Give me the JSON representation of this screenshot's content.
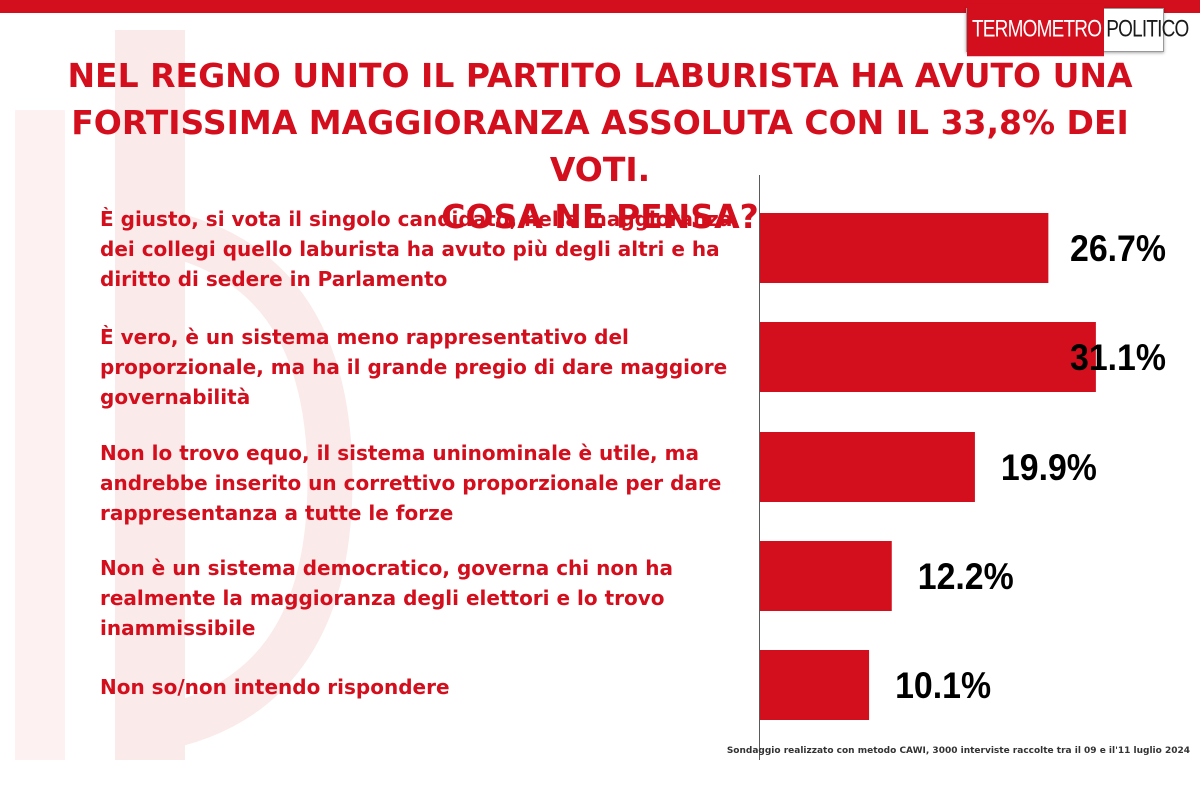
{
  "brand": {
    "logo_part1": "TERMOMETRO",
    "logo_part2": "POLITICO",
    "accent_color": "#d30f1d"
  },
  "title_lines": [
    "NEL REGNO UNITO IL PARTITO LABURISTA HA AVUTO UNA",
    "FORTISSIMA MAGGIORANZA ASSOLUTA CON IL 33,8% DEI VOTI.",
    "COSA NE PENSA?"
  ],
  "chart_data": {
    "type": "bar",
    "orientation": "horizontal",
    "categories": [
      "È giusto, si vota il singolo candidato, nella maggioranza dei collegi quello laburista ha avuto più degli altri e ha diritto di sedere in Parlamento",
      "È vero, è un sistema meno rappresentativo del proporzionale, ma ha il grande pregio di dare maggiore governabilità",
      "Non lo trovo equo, il sistema uninominale è utile, ma andrebbe inserito un correttivo proporzionale per dare rappresentanza a tutte le forze",
      "Non è un sistema democratico, governa chi non ha realmente la maggioranza degli elettori e lo trovo inammissibile",
      "Non so/non intendo rispondere"
    ],
    "values": [
      26.7,
      31.1,
      19.9,
      12.2,
      10.1
    ],
    "value_labels": [
      "26.7%",
      "31.1%",
      "19.9%",
      "12.2%",
      "10.1%"
    ],
    "unit": "%",
    "bar_color": "#d30f1d",
    "legend": "none",
    "grid": false
  },
  "footnote": "Sondaggio realizzato con metodo CAWI, 3000 interviste raccolte tra il 09 e il'11 luglio 2024"
}
